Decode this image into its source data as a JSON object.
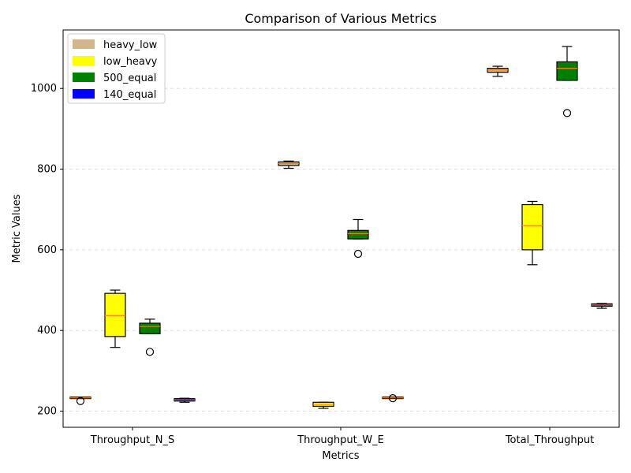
{
  "chart_data": {
    "type": "box",
    "title": "Comparison of Various Metrics",
    "xlabel": "Metrics",
    "ylabel": "Metric Values",
    "categories": [
      "Throughput_N_S",
      "Throughput_W_E",
      "Total_Throughput"
    ],
    "ylim": [
      160,
      1145
    ],
    "yticks": [
      200,
      400,
      600,
      800,
      1000
    ],
    "grid": "y-dashed",
    "legend_position": "top-left",
    "series": [
      {
        "name": "heavy_low",
        "color": "#d2b48c",
        "boxes": [
          {
            "whisker_low": 232,
            "q1": 232,
            "median": 233,
            "q3": 234,
            "whisker_high": 234,
            "outliers": [
              225
            ]
          },
          {
            "whisker_low": 802,
            "q1": 809,
            "median": 814,
            "q3": 818,
            "whisker_high": 820,
            "outliers": []
          },
          {
            "whisker_low": 1030,
            "q1": 1040,
            "median": 1046,
            "q3": 1050,
            "whisker_high": 1055,
            "outliers": []
          }
        ]
      },
      {
        "name": "low_heavy",
        "color": "#ffff00",
        "boxes": [
          {
            "whisker_low": 358,
            "q1": 385,
            "median": 437,
            "q3": 492,
            "whisker_high": 500,
            "outliers": []
          },
          {
            "whisker_low": 207,
            "q1": 212,
            "median": 217,
            "q3": 222,
            "whisker_high": 222,
            "outliers": []
          },
          {
            "whisker_low": 563,
            "q1": 600,
            "median": 660,
            "q3": 712,
            "whisker_high": 720,
            "outliers": []
          }
        ]
      },
      {
        "name": "500_equal",
        "color": "#008000",
        "boxes": [
          {
            "whisker_low": 392,
            "q1": 392,
            "median": 410,
            "q3": 418,
            "whisker_high": 428,
            "outliers": [
              347
            ]
          },
          {
            "whisker_low": 627,
            "q1": 627,
            "median": 640,
            "q3": 648,
            "whisker_high": 675,
            "outliers": [
              590
            ]
          },
          {
            "whisker_low": 1020,
            "q1": 1020,
            "median": 1050,
            "q3": 1066,
            "whisker_high": 1104,
            "outliers": [
              939
            ]
          }
        ]
      },
      {
        "name": "140_equal",
        "color": "#0000ff",
        "boxes": [
          {
            "whisker_low": 222,
            "q1": 225,
            "median": 228,
            "q3": 231,
            "whisker_high": 232,
            "outliers": []
          },
          {
            "whisker_low": 233,
            "q1": 233,
            "median": 233,
            "q3": 233,
            "whisker_high": 233,
            "outliers": [
              232
            ]
          },
          {
            "whisker_low": 455,
            "q1": 460,
            "median": 463,
            "q3": 466,
            "whisker_high": 467,
            "outliers": []
          }
        ]
      }
    ]
  }
}
